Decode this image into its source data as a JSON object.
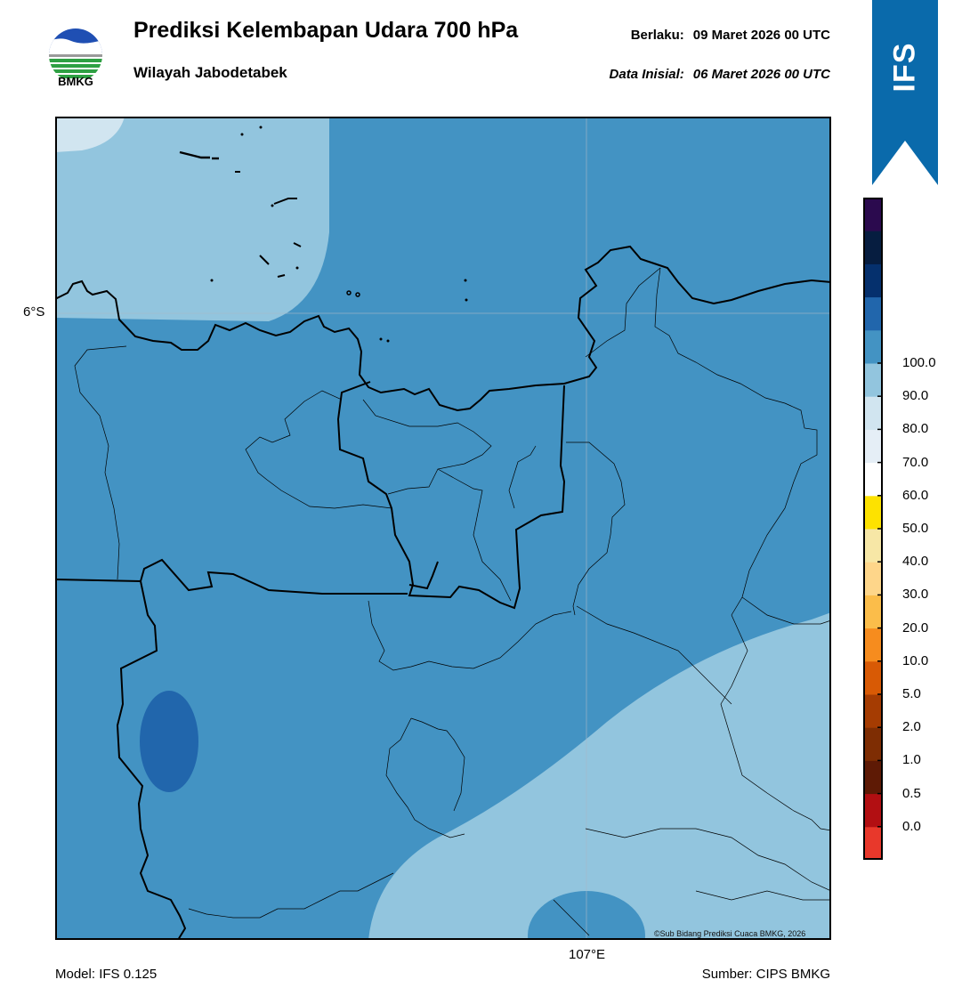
{
  "header": {
    "logo_text": "BMKG",
    "title": "Prediksi Kelembapan Udara 700 hPa",
    "subtitle": "Wilayah Jabodetabek",
    "valid_label": "Berlaku:",
    "valid_value": "09 Maret 2026 00 UTC",
    "init_label": "Data Inisial:",
    "init_value": "06 Maret 2026 00 UTC"
  },
  "banner": {
    "text": "IFS",
    "color": "#0a6aab"
  },
  "map": {
    "lat_label": "6°S",
    "lon_label": "107°E",
    "copyright": "©Sub Bidang Prediksi Cuaca BMKG, 2026",
    "fill_colors": {
      "light_blue": "#92c5de",
      "mid_blue": "#4393c3",
      "dark_blue": "#2166ac",
      "very_light": "#d1e5f0"
    },
    "land_lines": "#000000"
  },
  "colorbar": {
    "colors": [
      "#e8382b",
      "#b20f12",
      "#5e1a05",
      "#7e2d03",
      "#a53c02",
      "#d85a05",
      "#f68c1e",
      "#fbbd4a",
      "#fed68a",
      "#f7e7a6",
      "#fde200",
      "#ffffff",
      "#e5eef6",
      "#d1e5f0",
      "#92c5de",
      "#4393c3",
      "#2166ac",
      "#05306d",
      "#061d40",
      "#2b0a4e"
    ],
    "tick_labels": [
      "0.0",
      "0.5",
      "1.0",
      "2.0",
      "5.0",
      "10.0",
      "20.0",
      "30.0",
      "40.0",
      "50.0",
      "60.0",
      "70.0",
      "80.0",
      "90.0",
      "100.0"
    ]
  },
  "footer": {
    "model": "Model: IFS 0.125",
    "source": "Sumber: CIPS BMKG"
  }
}
